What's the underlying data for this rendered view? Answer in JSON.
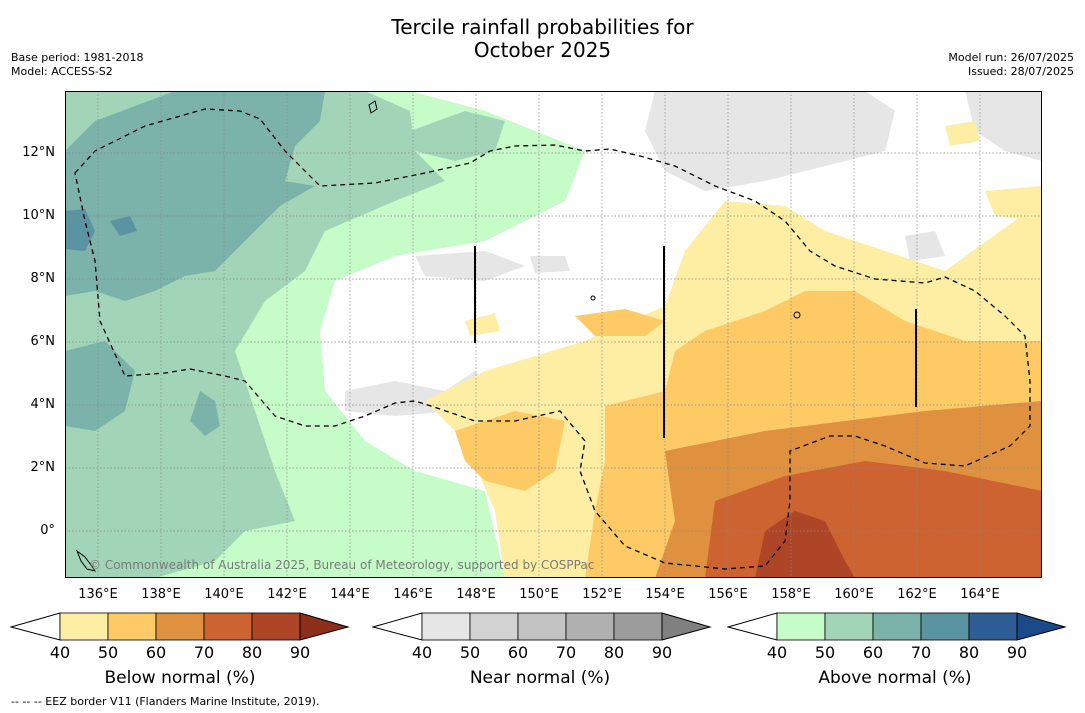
{
  "header": {
    "title_line1": "Tercile rainfall probabilities for",
    "title_line2": "October 2025",
    "base_period": "Base period: 1981-2018",
    "model": "Model: ACCESS-S2",
    "model_run": "Model run: 26/07/2025",
    "issued": "Issued: 28/07/2025"
  },
  "map": {
    "lat_labels": [
      "12°N",
      "10°N",
      "8°N",
      "6°N",
      "4°N",
      "2°N",
      "0°"
    ],
    "lon_labels": [
      "136°E",
      "138°E",
      "140°E",
      "142°E",
      "144°E",
      "146°E",
      "148°E",
      "150°E",
      "152°E",
      "154°E",
      "156°E",
      "158°E",
      "160°E",
      "162°E",
      "164°E"
    ],
    "copyright": "© Commonwealth of Australia 2025, Bureau of Meteorology, supported by COSPPac",
    "colors": {
      "below": [
        "#fdeea3",
        "#fdca65",
        "#e0913f",
        "#cc6330",
        "#ae4526",
        "#8c2e1a"
      ],
      "near": [
        "#e6e6e6",
        "#d2d2d2",
        "#c3c3c3",
        "#b0b0b0",
        "#9c9c9c",
        "#808080"
      ],
      "above": [
        "#c6fcc8",
        "#a2d5b8",
        "#7bb3aa",
        "#5a93a1",
        "#2e5e95",
        "#1a4a88"
      ]
    }
  },
  "colorbars": {
    "ticks": [
      "40",
      "50",
      "60",
      "70",
      "80",
      "90"
    ],
    "below_label": "Below normal (%)",
    "near_label": "Near normal (%)",
    "above_label": "Above normal (%)"
  },
  "footnote": "--  --  -- EEZ border V11 (Flanders Marine Institute, 2019)."
}
